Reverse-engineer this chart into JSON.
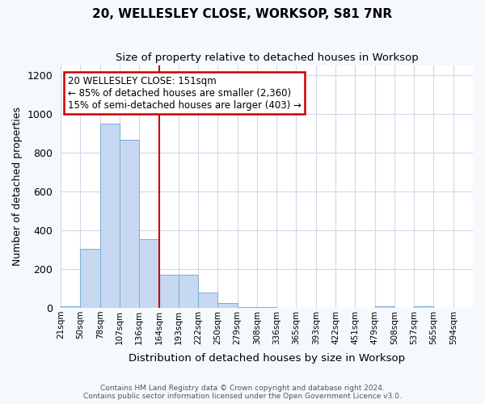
{
  "title": "20, WELLESLEY CLOSE, WORKSOP, S81 7NR",
  "subtitle": "Size of property relative to detached houses in Worksop",
  "xlabel": "Distribution of detached houses by size in Worksop",
  "ylabel": "Number of detached properties",
  "bin_labels": [
    "21sqm",
    "50sqm",
    "78sqm",
    "107sqm",
    "136sqm",
    "164sqm",
    "193sqm",
    "222sqm",
    "250sqm",
    "279sqm",
    "308sqm",
    "336sqm",
    "365sqm",
    "393sqm",
    "422sqm",
    "451sqm",
    "479sqm",
    "508sqm",
    "537sqm",
    "565sqm",
    "594sqm"
  ],
  "counts": [
    10,
    305,
    950,
    865,
    355,
    170,
    170,
    80,
    25,
    5,
    3,
    0,
    0,
    0,
    0,
    0,
    8,
    0,
    8,
    0,
    0
  ],
  "bar_color": "#c5d8f0",
  "bar_edge_color": "#7aadd4",
  "grid_color": "#d0d8e8",
  "red_line_bin": 4,
  "red_line_label": "164sqm",
  "property_label": "20 WELLESLEY CLOSE: 151sqm",
  "annotation_line1": "← 85% of detached houses are smaller (2,360)",
  "annotation_line2": "15% of semi-detached houses are larger (403) →",
  "annotation_box_color": "#ffffff",
  "annotation_box_edge_color": "#cc0000",
  "ylim": [
    0,
    1250
  ],
  "yticks": [
    0,
    200,
    400,
    600,
    800,
    1000,
    1200
  ],
  "footer_line1": "Contains HM Land Registry data © Crown copyright and database right 2024.",
  "footer_line2": "Contains public sector information licensed under the Open Government Licence v3.0.",
  "background_color": "#ffffff",
  "fig_bg_color": "#f5f8fd"
}
